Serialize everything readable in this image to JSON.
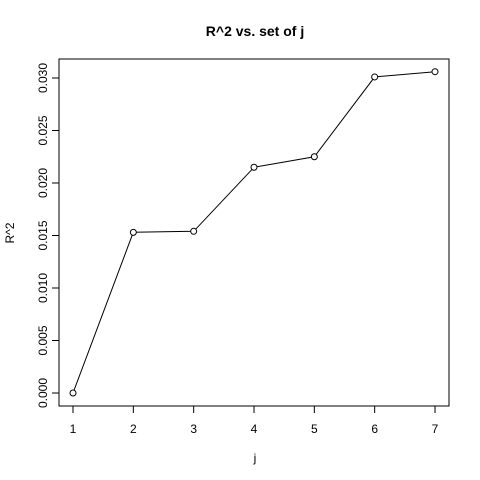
{
  "chart_data": {
    "type": "line",
    "title": "R^2 vs. set of j",
    "xlabel": "j",
    "ylabel": "R^2",
    "x": [
      1,
      2,
      3,
      4,
      5,
      6,
      7
    ],
    "series": [
      {
        "values": [
          0.0,
          0.0153,
          0.0154,
          0.0215,
          0.0225,
          0.0301,
          0.0306
        ]
      }
    ],
    "xlim": [
      1,
      7
    ],
    "ylim": [
      0,
      0.03
    ],
    "xticks": [
      1,
      2,
      3,
      4,
      5,
      6,
      7
    ],
    "xtick_labels": [
      "1",
      "2",
      "3",
      "4",
      "5",
      "6",
      "7"
    ],
    "yticks": [
      0,
      0.005,
      0.01,
      0.015,
      0.02,
      0.025,
      0.03
    ],
    "ytick_labels": [
      "0.000",
      "0.005",
      "0.010",
      "0.015",
      "0.020",
      "0.025",
      "0.030"
    ],
    "markers": "open-circle",
    "grid": false,
    "line_color": "#000000"
  }
}
